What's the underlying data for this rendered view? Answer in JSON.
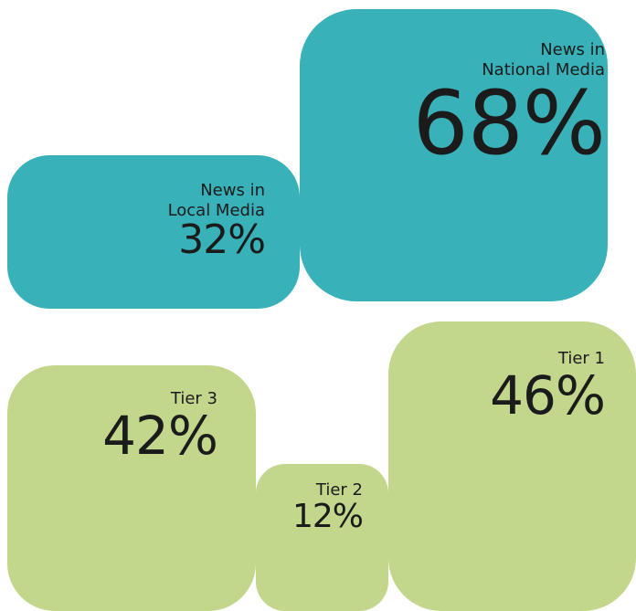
{
  "chart_data": [
    {
      "type": "tile",
      "color": "#38b1b9",
      "categories": [
        "News in\nNational Media",
        "News in\nLocal Media"
      ],
      "values": [
        68,
        32
      ],
      "value_labels": [
        "68%",
        "32%"
      ]
    },
    {
      "type": "tile",
      "color": "#c2d78c",
      "categories": [
        "Tier 1",
        "Tier 3",
        "Tier 2"
      ],
      "values": [
        46,
        42,
        12
      ],
      "value_labels": [
        "46%",
        "42%",
        "12%"
      ]
    }
  ]
}
